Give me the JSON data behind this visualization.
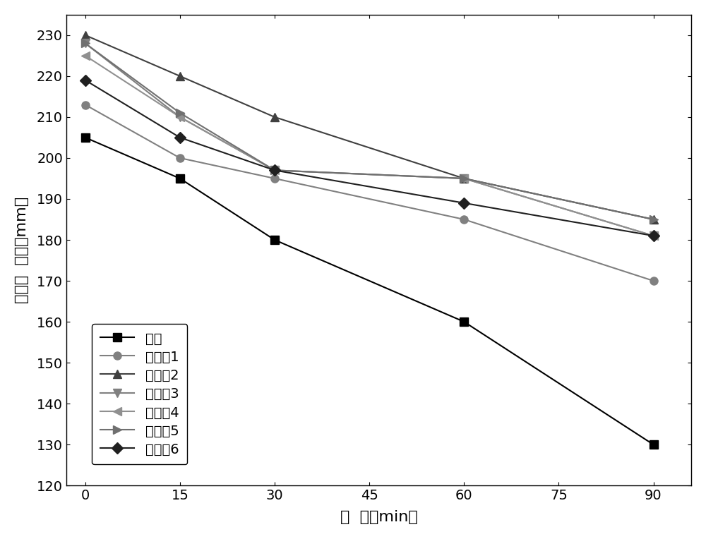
{
  "x": [
    0,
    15,
    30,
    60,
    90
  ],
  "series": [
    {
      "label": "基准",
      "values": [
        205,
        195,
        180,
        160,
        130
      ],
      "color": "#000000",
      "marker": "s",
      "linestyle": "-",
      "linewidth": 1.5,
      "markersize": 8
    },
    {
      "label": "实施例1",
      "values": [
        213,
        200,
        195,
        185,
        170
      ],
      "color": "#808080",
      "marker": "o",
      "linestyle": "-",
      "linewidth": 1.5,
      "markersize": 8
    },
    {
      "label": "实施例2",
      "values": [
        230,
        220,
        210,
        195,
        185
      ],
      "color": "#404040",
      "marker": "^",
      "linestyle": "-",
      "linewidth": 1.5,
      "markersize": 9
    },
    {
      "label": "实施例3",
      "values": [
        228,
        210,
        197,
        195,
        181
      ],
      "color": "#808080",
      "marker": "v",
      "linestyle": "-",
      "linewidth": 1.5,
      "markersize": 9
    },
    {
      "label": "实施例4",
      "values": [
        225,
        210,
        197,
        195,
        181
      ],
      "color": "#909090",
      "marker": "<",
      "linestyle": "-",
      "linewidth": 1.5,
      "markersize": 9
    },
    {
      "label": "实施例5",
      "values": [
        228,
        211,
        197,
        195,
        185
      ],
      "color": "#707070",
      "marker": ">",
      "linestyle": "-",
      "linewidth": 1.5,
      "markersize": 9
    },
    {
      "label": "实施例6",
      "values": [
        219,
        205,
        197,
        189,
        181
      ],
      "color": "#202020",
      "marker": "D",
      "linestyle": "-",
      "linewidth": 1.5,
      "markersize": 8
    }
  ],
  "xlabel": "时  间（min）",
  "ylabel": "净浆流  动度（mm）",
  "xlim": [
    -3,
    96
  ],
  "ylim": [
    120,
    235
  ],
  "xticks": [
    0,
    15,
    30,
    45,
    60,
    75,
    90
  ],
  "yticks": [
    120,
    130,
    140,
    150,
    160,
    170,
    180,
    190,
    200,
    210,
    220,
    230
  ],
  "background_color": "#ffffff",
  "grid": false,
  "font_size": 16,
  "tick_font_size": 14,
  "legend_font_size": 14
}
